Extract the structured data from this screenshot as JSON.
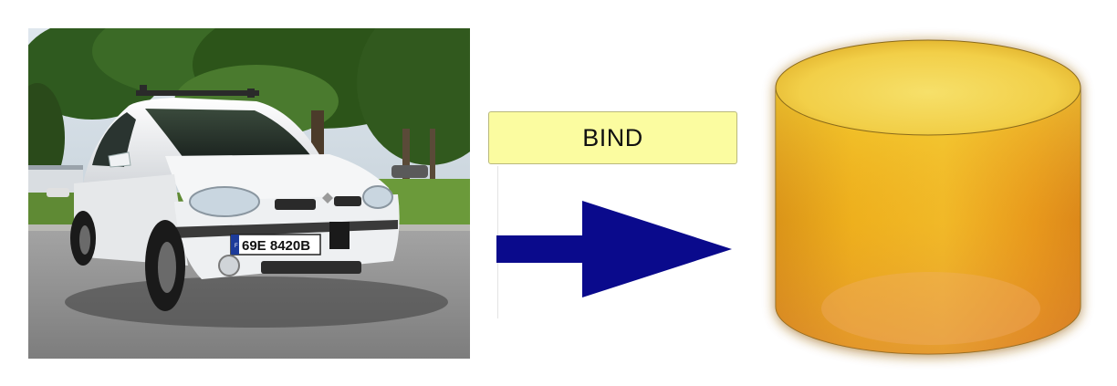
{
  "photo": {
    "description_icon": "car-photo",
    "license_plate": "69E 8420B",
    "plate_country": "F"
  },
  "bind_label": "BIND",
  "arrow": {
    "icon": "right-arrow-icon",
    "color": "#0a0a8c"
  },
  "database": {
    "icon": "database-cylinder-icon",
    "color": "#f2c020"
  },
  "colors": {
    "bind_box_fill": "#fbfca0",
    "arrow_blue": "#0a0a8c"
  }
}
